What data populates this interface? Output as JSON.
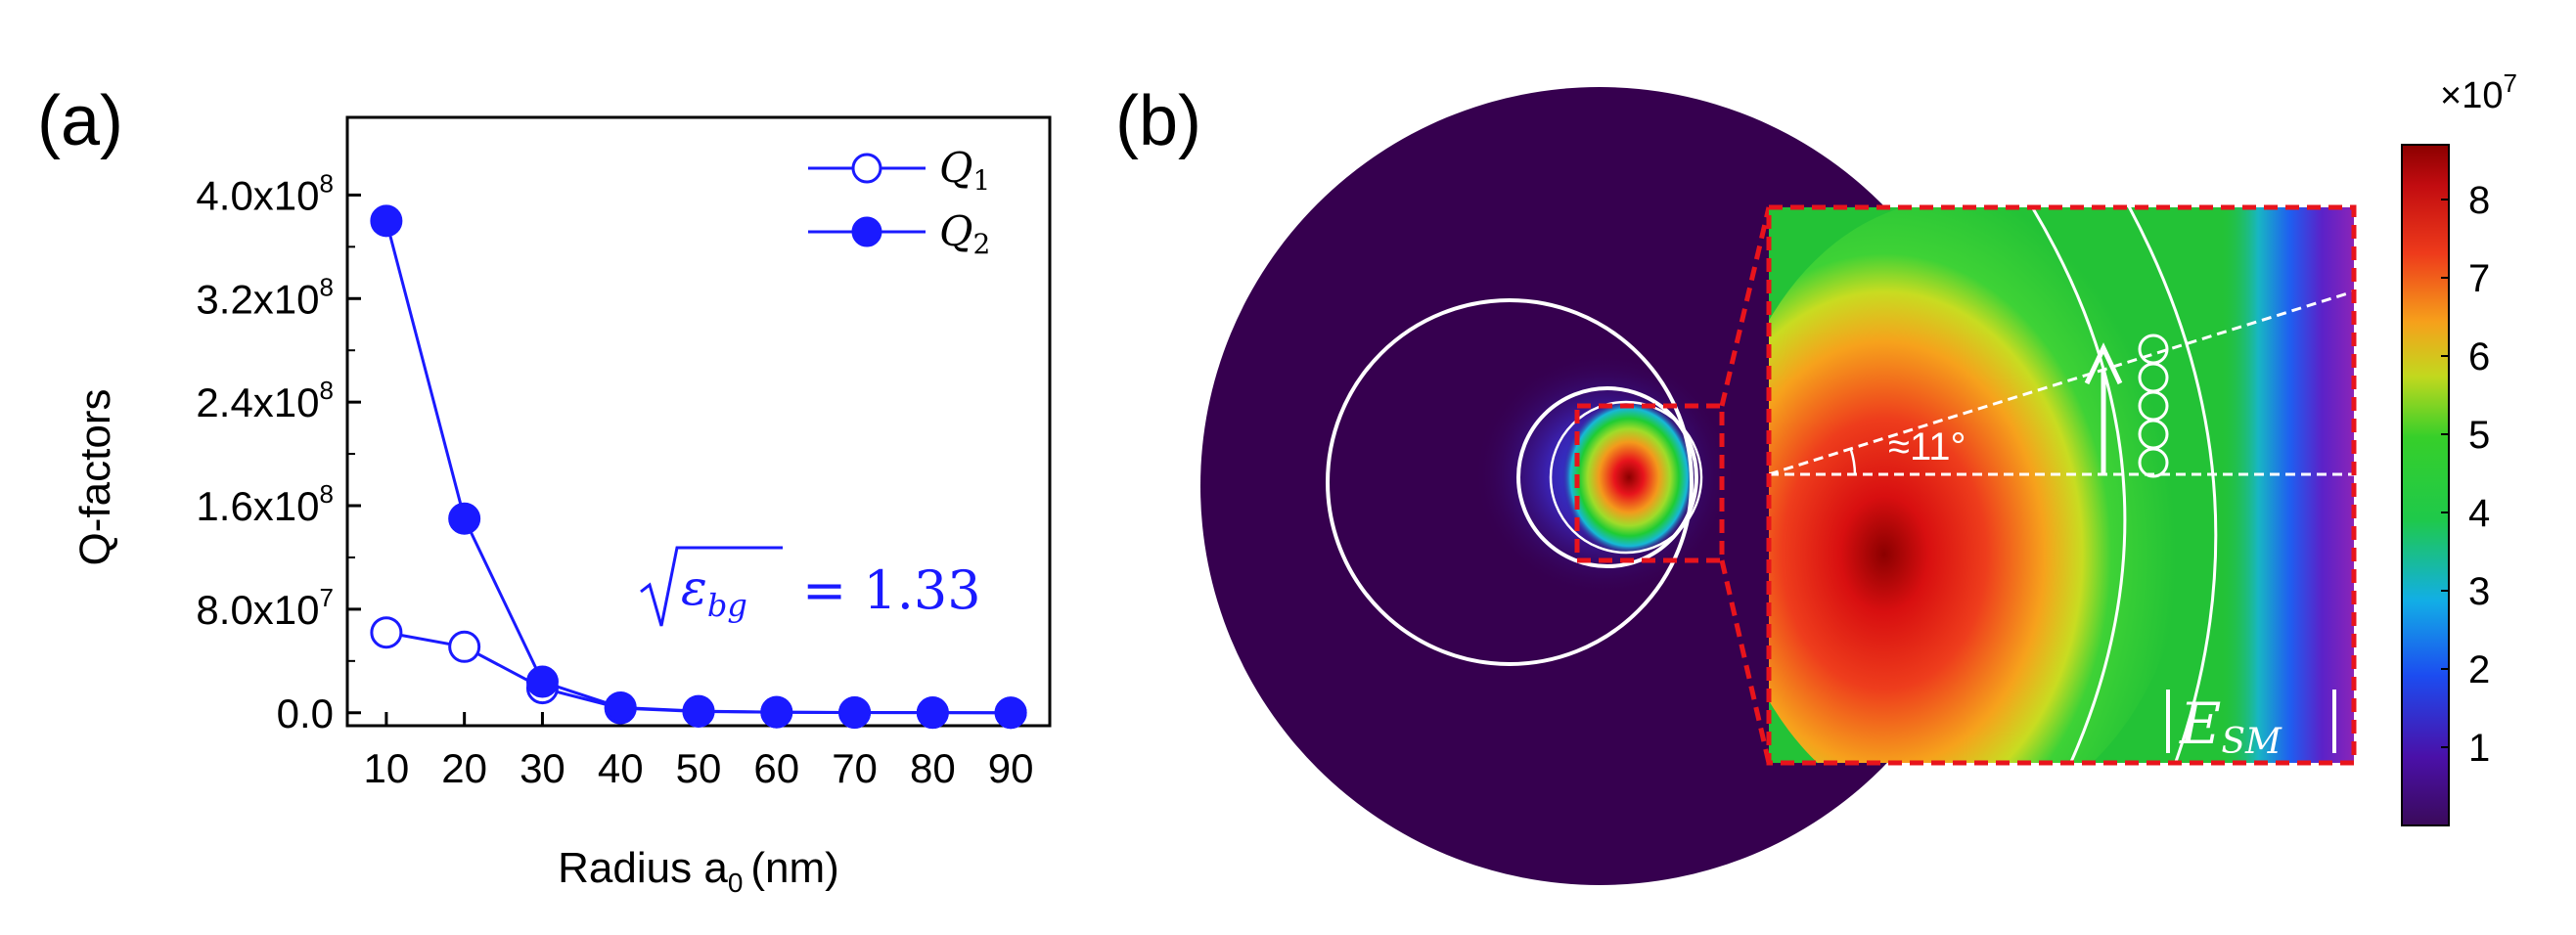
{
  "panel_a": {
    "label": "(a)",
    "ylabel": "Q-factors",
    "xlabel_main": "Radius a",
    "xlabel_sub": "0",
    "xlabel_unit": "(nm)",
    "legend": [
      {
        "name": "Q",
        "sub": "1",
        "marker": "open"
      },
      {
        "name": "Q",
        "sub": "2",
        "marker": "filled"
      }
    ],
    "annotation": {
      "symbol": "ε",
      "sub": "bg",
      "value": "= 1.33"
    },
    "yticks": [
      {
        "mant": "0.0",
        "exp": ""
      },
      {
        "mant": "8.0x10",
        "exp": "7"
      },
      {
        "mant": "1.6x10",
        "exp": "8"
      },
      {
        "mant": "2.4x10",
        "exp": "8"
      },
      {
        "mant": "3.2x10",
        "exp": "8"
      },
      {
        "mant": "4.0x10",
        "exp": "8"
      }
    ]
  },
  "panel_b": {
    "label": "(b)",
    "angle_label": "≈11°",
    "field_label": {
      "main": "E",
      "sub": "SM"
    },
    "colorbar": {
      "multiplier": "×10",
      "multiplier_exp": "7",
      "ticks": [
        "1",
        "2",
        "3",
        "4",
        "5",
        "6",
        "7",
        "8"
      ],
      "min": 0,
      "max": 8.7
    }
  },
  "chart_data": [
    {
      "type": "line",
      "x": [
        10,
        20,
        30,
        40,
        50,
        60,
        70,
        80,
        90
      ],
      "series": [
        {
          "name": "Q1",
          "values": [
            62000000.0,
            51000000.0,
            19000000.0,
            3500000.0,
            1000000.0,
            400000.0,
            150000.0,
            60000.0,
            30000.0
          ]
        },
        {
          "name": "Q2",
          "values": [
            380000000.0,
            150000000.0,
            24000000.0,
            4000000.0,
            1200000.0,
            500000.0,
            200000.0,
            80000.0,
            40000.0
          ]
        }
      ],
      "xlabel": "Radius a0 (nm)",
      "ylabel": "Q-factors",
      "xlim": [
        5,
        95
      ],
      "ylim": [
        -10000000.0,
        460000000.0
      ],
      "xticks": [
        10,
        20,
        30,
        40,
        50,
        60,
        70,
        80,
        90
      ],
      "grid": false,
      "legend": "top-right",
      "color": "#1a1aff"
    },
    {
      "type": "heatmap",
      "title": "|E_SM|",
      "colorbar_range": [
        0,
        8.7
      ],
      "colorbar_scale": "×10^7",
      "colormap": "jet"
    }
  ]
}
